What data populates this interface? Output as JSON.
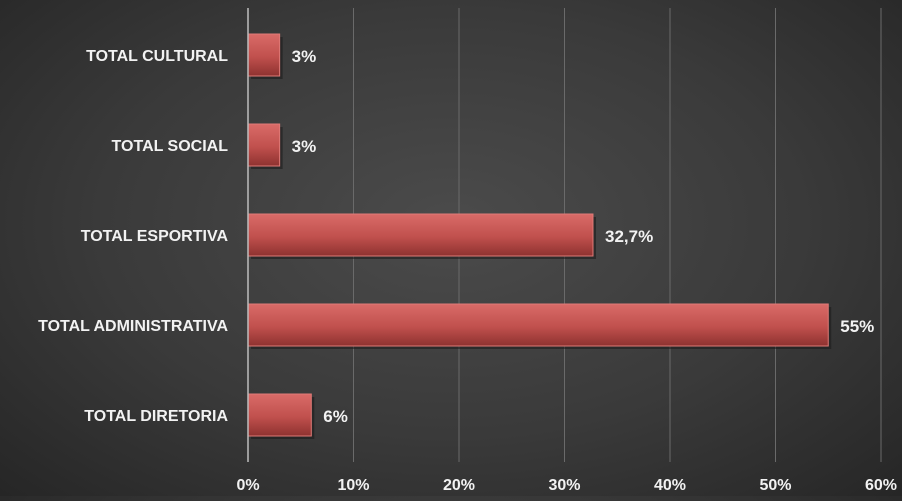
{
  "chart_data": {
    "type": "bar",
    "orientation": "horizontal",
    "categories": [
      "TOTAL CULTURAL",
      "TOTAL SOCIAL",
      "TOTAL ESPORTIVA",
      "TOTAL ADMINISTRATIVA",
      "TOTAL DIRETORIA"
    ],
    "values": [
      3,
      3,
      32.7,
      55,
      6
    ],
    "data_labels": [
      "3%",
      "3%",
      "32,7%",
      "55%",
      "6%"
    ],
    "x_ticks": [
      0,
      10,
      20,
      30,
      40,
      50,
      60
    ],
    "x_tick_labels": [
      "0%",
      "10%",
      "20%",
      "30%",
      "40%",
      "50%",
      "60%"
    ],
    "xlim": [
      0,
      60
    ],
    "title": "",
    "xlabel": "",
    "ylabel": "",
    "grid": "vertical",
    "legend": "none",
    "colors": {
      "bar": "#c0504d",
      "bar_highlight": "#d96b68",
      "bar_shadow": "#8e3230",
      "grid": "#6a6a6a",
      "axis": "#bdbdbd",
      "text": "#f2f2f2",
      "background": "#3b3b3b"
    }
  }
}
